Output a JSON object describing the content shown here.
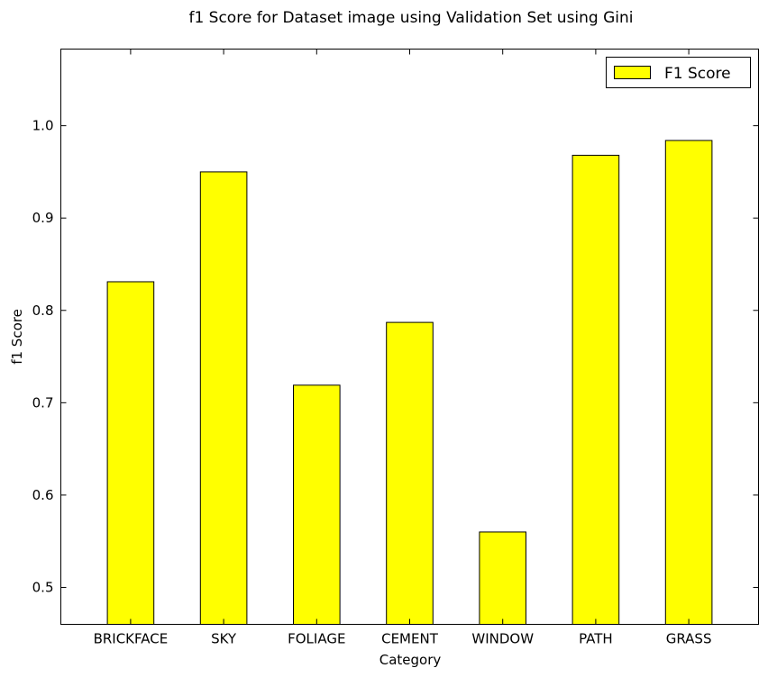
{
  "chart_data": {
    "type": "bar",
    "title": "f1 Score for Dataset image using Validation Set using Gini",
    "xlabel": "Category",
    "ylabel": "f1 Score",
    "categories": [
      "BRICKFACE",
      "SKY",
      "FOLIAGE",
      "CEMENT",
      "WINDOW",
      "PATH",
      "GRASS"
    ],
    "series": [
      {
        "name": "F1 Score",
        "values": [
          0.831,
          0.95,
          0.719,
          0.787,
          0.56,
          0.968,
          0.984
        ]
      }
    ],
    "ylim": [
      0.46,
      1.083
    ],
    "yticks": [
      0.5,
      0.6,
      0.7,
      0.8,
      0.9,
      1.0
    ],
    "ytick_labels": [
      "0.5",
      "0.6",
      "0.7",
      "0.8",
      "0.9",
      "1.0"
    ],
    "grid": false,
    "legend_position": "top-right",
    "bar_color": "#ffff00",
    "edge_color": "#000000"
  }
}
